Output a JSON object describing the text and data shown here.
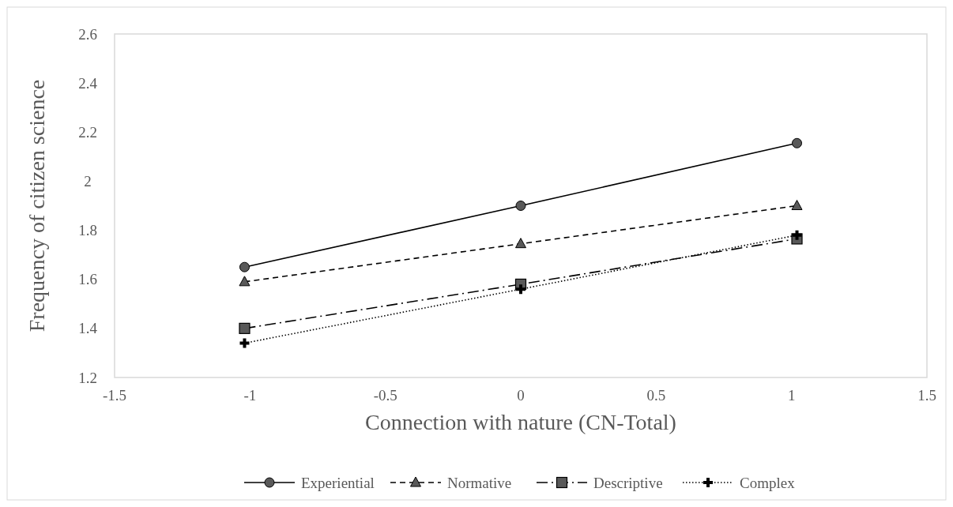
{
  "chart_data": {
    "type": "line",
    "xlabel": "Connection with nature (CN-Total)",
    "ylabel": "Frequency of citizen science",
    "xlim": [
      -1.5,
      1.5
    ],
    "xticks": [
      -1.5,
      -1,
      -0.5,
      0,
      0.5,
      1,
      1.5
    ],
    "ylim": [
      1.2,
      2.6
    ],
    "yticks": [
      1.2,
      1.4,
      1.6,
      1.8,
      2,
      2.2,
      2.4,
      2.6
    ],
    "x": [
      -1.02,
      0,
      1.02
    ],
    "legend": "bottom",
    "grid": false,
    "series": [
      {
        "name": "Experiential",
        "color": "#000000",
        "values": [
          1.65,
          1.9,
          2.155
        ],
        "marker": "circle",
        "line_style": "solid"
      },
      {
        "name": "Normative",
        "color": "#000000",
        "values": [
          1.59,
          1.745,
          1.9
        ],
        "marker": "triangle",
        "line_style": "dashed"
      },
      {
        "name": "Descriptive",
        "color": "#000000",
        "values": [
          1.4,
          1.58,
          1.765
        ],
        "marker": "square",
        "line_style": "dashdot"
      },
      {
        "name": "Complex",
        "color": "#000000",
        "values": [
          1.34,
          1.56,
          1.78
        ],
        "marker": "cross",
        "line_style": "dotted"
      }
    ]
  }
}
